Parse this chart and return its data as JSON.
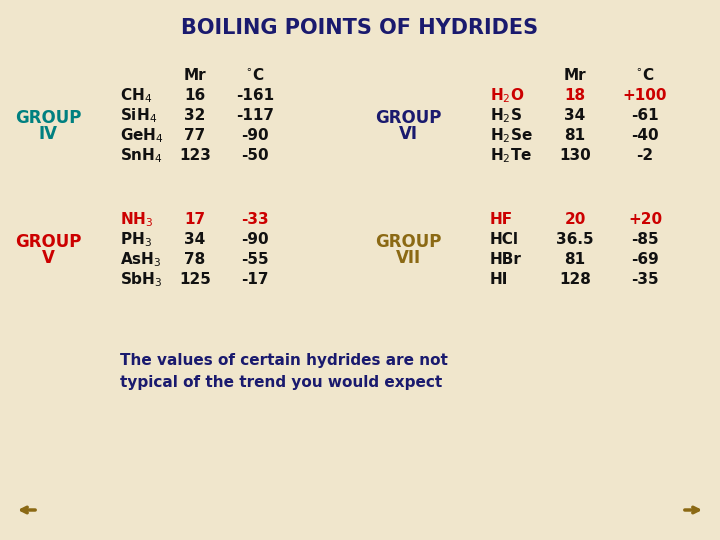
{
  "title": "BOILING POINTS OF HYDRIDES",
  "title_color": "#1a1a6e",
  "bg_color": "#f0e6cc",
  "group_iv_label": [
    "GROUP",
    "IV"
  ],
  "group_iv_color": "#008080",
  "group_iv_compounds": [
    "CH$_4$",
    "SiH$_4$",
    "GeH$_4$",
    "SnH$_4$"
  ],
  "group_iv_mr": [
    "16",
    "32",
    "77",
    "123"
  ],
  "group_iv_c": [
    "-161",
    "-117",
    "-90",
    "-50"
  ],
  "group_iv_compound_color": "#111111",
  "group_iv_mr_color": "#111111",
  "group_iv_c_color": "#111111",
  "group_v_label": [
    "GROUP",
    "V"
  ],
  "group_v_color": "#cc0000",
  "group_v_compounds": [
    "NH$_3$",
    "PH$_3$",
    "AsH$_3$",
    "SbH$_3$"
  ],
  "group_v_mr": [
    "17",
    "34",
    "78",
    "125"
  ],
  "group_v_c": [
    "-33",
    "-90",
    "-55",
    "-17"
  ],
  "group_v_highlight_color": "#cc0000",
  "group_v_normal_color": "#111111",
  "group_vi_label": [
    "GROUP",
    "VI"
  ],
  "group_vi_color": "#1a1a6e",
  "group_vi_compounds": [
    "H$_2$O",
    "H$_2$S",
    "H$_2$Se",
    "H$_2$Te"
  ],
  "group_vi_mr": [
    "18",
    "34",
    "81",
    "130"
  ],
  "group_vi_c": [
    "+100",
    "-61",
    "-40",
    "-2"
  ],
  "group_vi_highlight_color": "#cc0000",
  "group_vi_normal_color": "#111111",
  "group_vii_label": [
    "GROUP",
    "VII"
  ],
  "group_vii_color": "#8b6914",
  "group_vii_compounds": [
    "HF",
    "HCl",
    "HBr",
    "HI"
  ],
  "group_vii_mr": [
    "20",
    "36.5",
    "81",
    "128"
  ],
  "group_vii_c": [
    "+20",
    "-85",
    "-69",
    "-35"
  ],
  "group_vii_highlight_color": "#cc0000",
  "group_vii_normal_color": "#111111",
  "col_header_mr": "Mr",
  "col_header_c": "$^{\\circ}$C",
  "col_header_color": "#111111",
  "footer_text1": "The values of certain hydrides are not",
  "footer_text2": "typical of the trend you would expect",
  "footer_color": "#1a1a6e",
  "arrow_color": "#8b6914"
}
